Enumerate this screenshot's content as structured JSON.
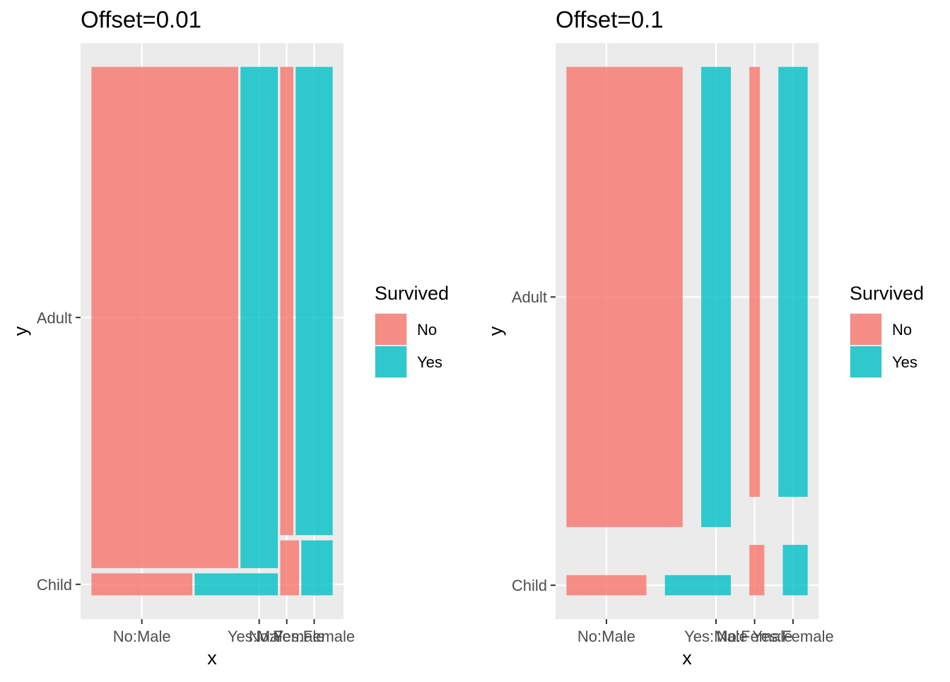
{
  "chart_data": [
    {
      "type": "mosaic",
      "title": "Offset=0.01",
      "xlabel": "x",
      "ylabel": "y",
      "x_ticks": [
        "No:Male",
        "Yes:Male",
        "No:Female",
        "Yes:Female"
      ],
      "y_ticks": [
        "Adult",
        "Child"
      ],
      "legend": {
        "title": "Survived",
        "entries": [
          "No",
          "Yes"
        ],
        "position": "right"
      },
      "sex_share": {
        "Male": 0.786,
        "Female": 0.214
      },
      "cells": [
        {
          "sex": "Male",
          "age": "Child",
          "age_share": 0.042,
          "no_share": 0.548
        },
        {
          "sex": "Male",
          "age": "Adult",
          "age_share": 0.958,
          "no_share": 0.797
        },
        {
          "sex": "Female",
          "age": "Child",
          "age_share": 0.105,
          "no_share": 0.375
        },
        {
          "sex": "Female",
          "age": "Adult",
          "age_share": 0.895,
          "no_share": 0.262
        }
      ]
    },
    {
      "type": "mosaic",
      "title": "Offset=0.1",
      "xlabel": "x",
      "ylabel": "y",
      "x_ticks": [
        "No:Male",
        "Yes:Male",
        "No:Female",
        "Yes:Female"
      ],
      "y_ticks": [
        "Adult",
        "Child"
      ],
      "legend": {
        "title": "Survived",
        "entries": [
          "No",
          "Yes"
        ],
        "position": "right"
      },
      "sex_share": {
        "Male": 0.786,
        "Female": 0.214
      },
      "cells": [
        {
          "sex": "Male",
          "age": "Child",
          "age_share": 0.042,
          "no_share": 0.548
        },
        {
          "sex": "Male",
          "age": "Adult",
          "age_share": 0.958,
          "no_share": 0.797
        },
        {
          "sex": "Female",
          "age": "Child",
          "age_share": 0.105,
          "no_share": 0.375
        },
        {
          "sex": "Female",
          "age": "Adult",
          "age_share": 0.895,
          "no_share": 0.262
        }
      ]
    }
  ],
  "colors": {
    "No": "#F8766D",
    "Yes": "#00BFC4",
    "panel_bg": "#EBEBEB",
    "grid": "#FFFFFF",
    "text": "#4D4D4D"
  }
}
